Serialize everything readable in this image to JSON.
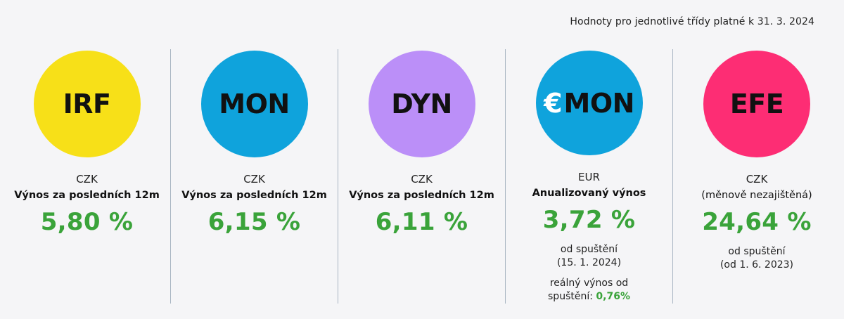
{
  "header_note": "Hodnoty pro jednotlivé třídy platné k 31. 3. 2024",
  "colors": {
    "irf": "#f7e018",
    "mon": "#0fa3dc",
    "dyn": "#bb8ff8",
    "emon": "#0fa3dc",
    "efe": "#fd2d74",
    "value_green": "#3aa33a",
    "divider": "#a9b6c3"
  },
  "funds": [
    {
      "code": "IRF",
      "currency": "CZK",
      "subtitle": "Výnos za posledních 12m",
      "value": "5,80 %"
    },
    {
      "code": "MON",
      "currency": "CZK",
      "subtitle": "Výnos za posledních 12m",
      "value": "6,15 %"
    },
    {
      "code": "DYN",
      "currency": "CZK",
      "subtitle": "Výnos za posledních 12m",
      "value": "6,11 %"
    },
    {
      "code_prefix": "€",
      "code": "MON",
      "currency": "EUR",
      "subtitle": "Anualizovaný výnos",
      "value": "3,72 %",
      "note_line1": "od spuštění",
      "note_line2": "(15. 1. 2024)",
      "real_line1": "reálný výnos od",
      "real_line2_prefix": "spuštění:",
      "real_value": "0,76%"
    },
    {
      "code": "EFE",
      "currency": "CZK",
      "subtitle": "(měnově nezajištěná)",
      "value": "24,64 %",
      "note_line1": "od spuštění",
      "note_line2": "(od 1. 6. 2023)"
    }
  ]
}
